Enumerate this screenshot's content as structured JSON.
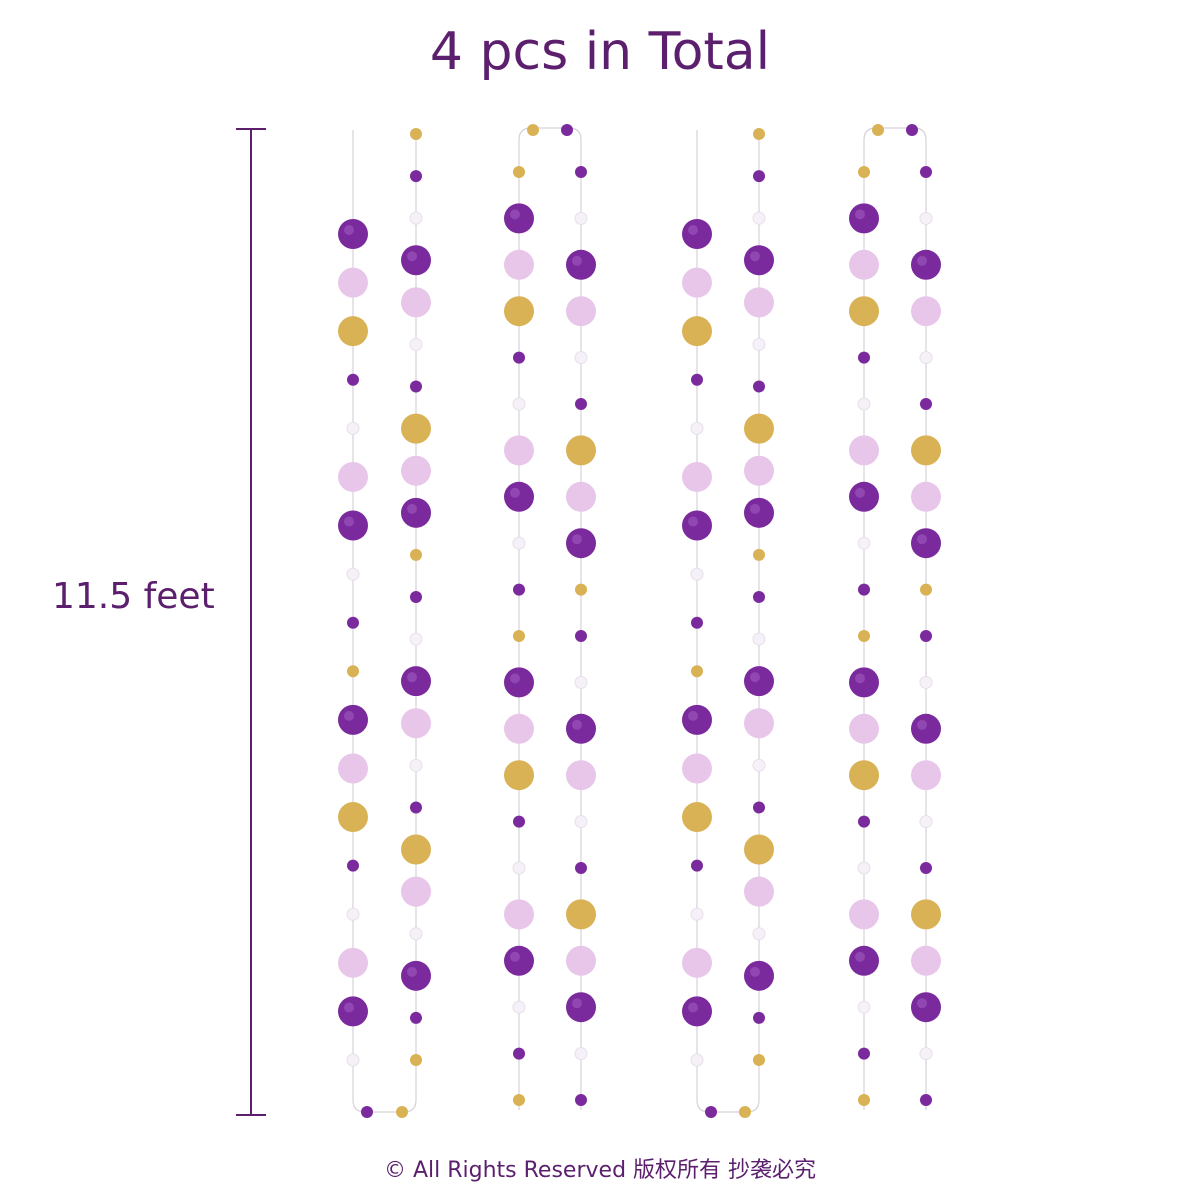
{
  "header": {
    "title": "4 pcs in Total"
  },
  "measurement": {
    "label": "11.5 feet",
    "color": "#5b1f6e"
  },
  "footer": {
    "text": "© All Rights Reserved 版权所有  抄袭必究"
  },
  "palette": {
    "purple": "#7a2a9c",
    "gold": "#d9b255",
    "pink": "#e8c6ea",
    "white": "#f6f1f8",
    "string": "#d6d0da"
  },
  "garlands": [
    {
      "name": "garland-1",
      "left_strand": [
        "purple",
        "pink",
        "gold",
        "purple-s",
        "white-s",
        "pink",
        "purple",
        "white-s",
        "purple-s",
        "gold-s",
        "purple",
        "pink",
        "gold",
        "purple-s",
        "white-s",
        "pink",
        "purple",
        "white-s"
      ],
      "right_strand": [
        "gold-s",
        "purple-s",
        "white-s",
        "purple",
        "pink",
        "white-s",
        "purple-s",
        "gold",
        "pink",
        "purple",
        "gold-s",
        "purple-s",
        "white-s",
        "purple",
        "pink",
        "white-s",
        "purple-s",
        "gold",
        "pink",
        "white-s",
        "purple",
        "purple-s",
        "gold-s"
      ]
    },
    {
      "name": "garland-2",
      "left_strand": [
        "gold-s",
        "purple",
        "pink",
        "gold",
        "purple-s",
        "white-s",
        "pink",
        "purple",
        "white-s",
        "purple-s",
        "gold-s",
        "purple",
        "pink",
        "gold",
        "purple-s",
        "white-s",
        "pink",
        "purple",
        "white-s",
        "purple-s",
        "gold-s"
      ],
      "right_strand": [
        "purple-s",
        "white-s",
        "purple",
        "pink",
        "white-s",
        "purple-s",
        "gold",
        "pink",
        "purple",
        "gold-s",
        "purple-s",
        "white-s",
        "purple",
        "pink",
        "white-s",
        "purple-s",
        "gold",
        "pink",
        "purple",
        "white-s",
        "purple-s"
      ]
    },
    {
      "name": "garland-3",
      "left_strand": [
        "purple",
        "pink",
        "gold",
        "purple-s",
        "white-s",
        "pink",
        "purple",
        "white-s",
        "purple-s",
        "gold-s",
        "purple",
        "pink",
        "gold",
        "purple-s",
        "white-s",
        "pink",
        "purple",
        "white-s"
      ],
      "right_strand": [
        "gold-s",
        "purple-s",
        "white-s",
        "purple",
        "pink",
        "white-s",
        "purple-s",
        "gold",
        "pink",
        "purple",
        "gold-s",
        "purple-s",
        "white-s",
        "purple",
        "pink",
        "white-s",
        "purple-s",
        "gold",
        "pink",
        "white-s",
        "purple",
        "purple-s",
        "gold-s"
      ]
    },
    {
      "name": "garland-4",
      "left_strand": [
        "gold-s",
        "purple",
        "pink",
        "gold",
        "purple-s",
        "white-s",
        "pink",
        "purple",
        "white-s",
        "purple-s",
        "gold-s",
        "purple",
        "pink",
        "gold",
        "purple-s",
        "white-s",
        "pink",
        "purple",
        "white-s",
        "purple-s",
        "gold-s"
      ],
      "right_strand": [
        "purple-s",
        "white-s",
        "purple",
        "pink",
        "white-s",
        "purple-s",
        "gold",
        "pink",
        "purple",
        "gold-s",
        "purple-s",
        "white-s",
        "purple",
        "pink",
        "white-s",
        "purple-s",
        "gold",
        "pink",
        "purple",
        "white-s",
        "purple-s"
      ]
    }
  ]
}
